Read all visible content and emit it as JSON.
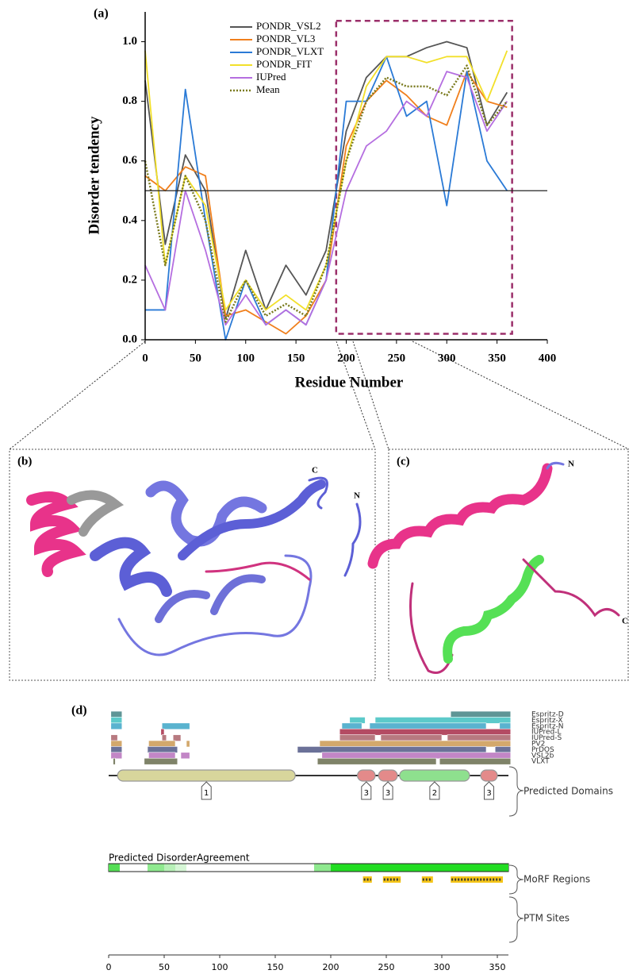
{
  "chart_data": [
    {
      "type": "line",
      "label": "(a)",
      "xlabel": "Residue Number",
      "ylabel": "Disorder tendency",
      "x": [
        0,
        20,
        40,
        60,
        80,
        100,
        120,
        140,
        160,
        180,
        200,
        220,
        240,
        260,
        280,
        300,
        320,
        340,
        360
      ],
      "series": [
        {
          "name": "PONDR_VSL2",
          "color": "#555555",
          "values": [
            0.87,
            0.32,
            0.62,
            0.5,
            0.07,
            0.3,
            0.1,
            0.25,
            0.15,
            0.3,
            0.7,
            0.88,
            0.95,
            0.95,
            0.98,
            1.0,
            0.98,
            0.72,
            0.83
          ]
        },
        {
          "name": "PONDR_VL3",
          "color": "#f07f1c",
          "values": [
            0.55,
            0.5,
            0.58,
            0.55,
            0.08,
            0.1,
            0.06,
            0.02,
            0.08,
            0.2,
            0.65,
            0.8,
            0.87,
            0.82,
            0.75,
            0.72,
            0.9,
            0.8,
            0.78
          ]
        },
        {
          "name": "PONDR_VLXT",
          "color": "#2a7ad6",
          "values": [
            0.1,
            0.1,
            0.84,
            0.4,
            0.0,
            0.2,
            0.05,
            0.1,
            0.05,
            0.2,
            0.8,
            0.8,
            0.95,
            0.75,
            0.8,
            0.45,
            0.9,
            0.6,
            0.5
          ]
        },
        {
          "name": "PONDR_FIT",
          "color": "#f2e02a",
          "values": [
            0.97,
            0.25,
            0.55,
            0.45,
            0.1,
            0.2,
            0.1,
            0.15,
            0.1,
            0.25,
            0.6,
            0.85,
            0.95,
            0.95,
            0.93,
            0.95,
            0.95,
            0.8,
            0.97
          ]
        },
        {
          "name": "IUPred",
          "color": "#b56ee0",
          "values": [
            0.25,
            0.1,
            0.5,
            0.3,
            0.05,
            0.15,
            0.05,
            0.1,
            0.05,
            0.2,
            0.5,
            0.65,
            0.7,
            0.8,
            0.75,
            0.9,
            0.88,
            0.7,
            0.8
          ]
        },
        {
          "name": "Mean",
          "color": "#7a7a1e",
          "dash": true,
          "values": [
            0.6,
            0.25,
            0.55,
            0.4,
            0.06,
            0.2,
            0.08,
            0.12,
            0.08,
            0.25,
            0.6,
            0.8,
            0.88,
            0.85,
            0.85,
            0.82,
            0.92,
            0.72,
            0.8
          ]
        }
      ],
      "xlim": [
        0,
        400
      ],
      "xticks": [
        0,
        50,
        100,
        150,
        200,
        250,
        300,
        350,
        400
      ],
      "ylim": [
        0,
        1.1
      ],
      "yticks": [
        {
          "value": 0,
          "label": "0.0"
        },
        0.2,
        0.4,
        0.6,
        0.8,
        {
          "value": 1,
          "label": "1.0"
        }
      ],
      "threshold": 0.5,
      "highlight": {
        "x": [
          190,
          365
        ],
        "y": [
          0.02,
          1.07
        ],
        "color": "#9b2f6a"
      }
    },
    {
      "type": "tracks",
      "label": "(d)",
      "xlim": [
        0,
        360
      ],
      "xticks": [
        0,
        50,
        100,
        150,
        200,
        250,
        300,
        350
      ],
      "tracks": [
        {
          "name": "Espritz-D",
          "color": "#5f9596",
          "segments": [
            [
              2,
              12
            ],
            [
              308,
              362
            ]
          ]
        },
        {
          "name": "Espritz-X",
          "color": "#5ccaca",
          "segments": [
            [
              2,
              12
            ],
            [
              217,
              231
            ],
            [
              240,
              362
            ]
          ]
        },
        {
          "name": "Espritz-N",
          "color": "#5ab3cf",
          "segments": [
            [
              2,
              12
            ],
            [
              48,
              73
            ],
            [
              210,
              228
            ],
            [
              235,
              340
            ],
            [
              352,
              362
            ]
          ]
        },
        {
          "name": "IUPred-L",
          "color": "#b44b63",
          "segments": [
            [
              47,
              50
            ],
            [
              208,
              362
            ]
          ]
        },
        {
          "name": "IUPred-S",
          "color": "#b77a80",
          "segments": [
            [
              2,
              8
            ],
            [
              48,
              52
            ],
            [
              58,
              65
            ],
            [
              208,
              240
            ],
            [
              245,
              300
            ],
            [
              305,
              362
            ]
          ]
        },
        {
          "name": "PV2",
          "color": "#d3a86c",
          "segments": [
            [
              2,
              12
            ],
            [
              36,
              60
            ],
            [
              70,
              73
            ],
            [
              190,
              362
            ]
          ]
        },
        {
          "name": "PrDOS",
          "color": "#6b7198",
          "segments": [
            [
              2,
              12
            ],
            [
              35,
              62
            ],
            [
              170,
              340
            ],
            [
              348,
              362
            ]
          ]
        },
        {
          "name": "VSL2b",
          "color": "#c286c6",
          "segments": [
            [
              2,
              12
            ],
            [
              36,
              60
            ],
            [
              65,
              73
            ],
            [
              192,
              362
            ]
          ]
        },
        {
          "name": "VLXT",
          "color": "#7f8369",
          "segments": [
            [
              4,
              6
            ],
            [
              32,
              62
            ],
            [
              188,
              295
            ],
            [
              298,
              362
            ]
          ]
        }
      ],
      "domains": {
        "label": "Predicted Domains",
        "items": [
          {
            "label": "1",
            "range": [
              8,
              168
            ],
            "color": "#d8d69c"
          },
          {
            "label": "3",
            "range": [
              224,
              240
            ],
            "color": "#e38a8a"
          },
          {
            "label": "3",
            "range": [
              243,
              260
            ],
            "color": "#e38a8a"
          },
          {
            "label": "2",
            "range": [
              262,
              325
            ],
            "color": "#8ee08e"
          },
          {
            "label": "3",
            "range": [
              335,
              350
            ],
            "color": "#e38a8a"
          }
        ]
      },
      "agreement": {
        "label": "Predicted DisorderAgreement",
        "segments": [
          {
            "range": [
              0,
              10
            ],
            "color": "#55de55"
          },
          {
            "range": [
              35,
              50
            ],
            "color": "#8fe98f"
          },
          {
            "range": [
              50,
              60
            ],
            "color": "#b7f0b7"
          },
          {
            "range": [
              60,
              70
            ],
            "color": "#d6f6d6"
          },
          {
            "range": [
              185,
              200
            ],
            "color": "#8fe98f"
          },
          {
            "range": [
              200,
              360
            ],
            "color": "#22dd22"
          }
        ]
      },
      "morf": {
        "label": "MoRF Regions",
        "ranges": [
          [
            229,
            237
          ],
          [
            247,
            263
          ],
          [
            282,
            292
          ],
          [
            308,
            355
          ]
        ]
      },
      "ptm": {
        "label": "PTM Sites"
      }
    }
  ],
  "panel_b": {
    "label": "(b)",
    "c_term": "C",
    "n_term": "N"
  },
  "panel_c": {
    "label": "(c)",
    "c_term": "C",
    "n_term": "N"
  }
}
